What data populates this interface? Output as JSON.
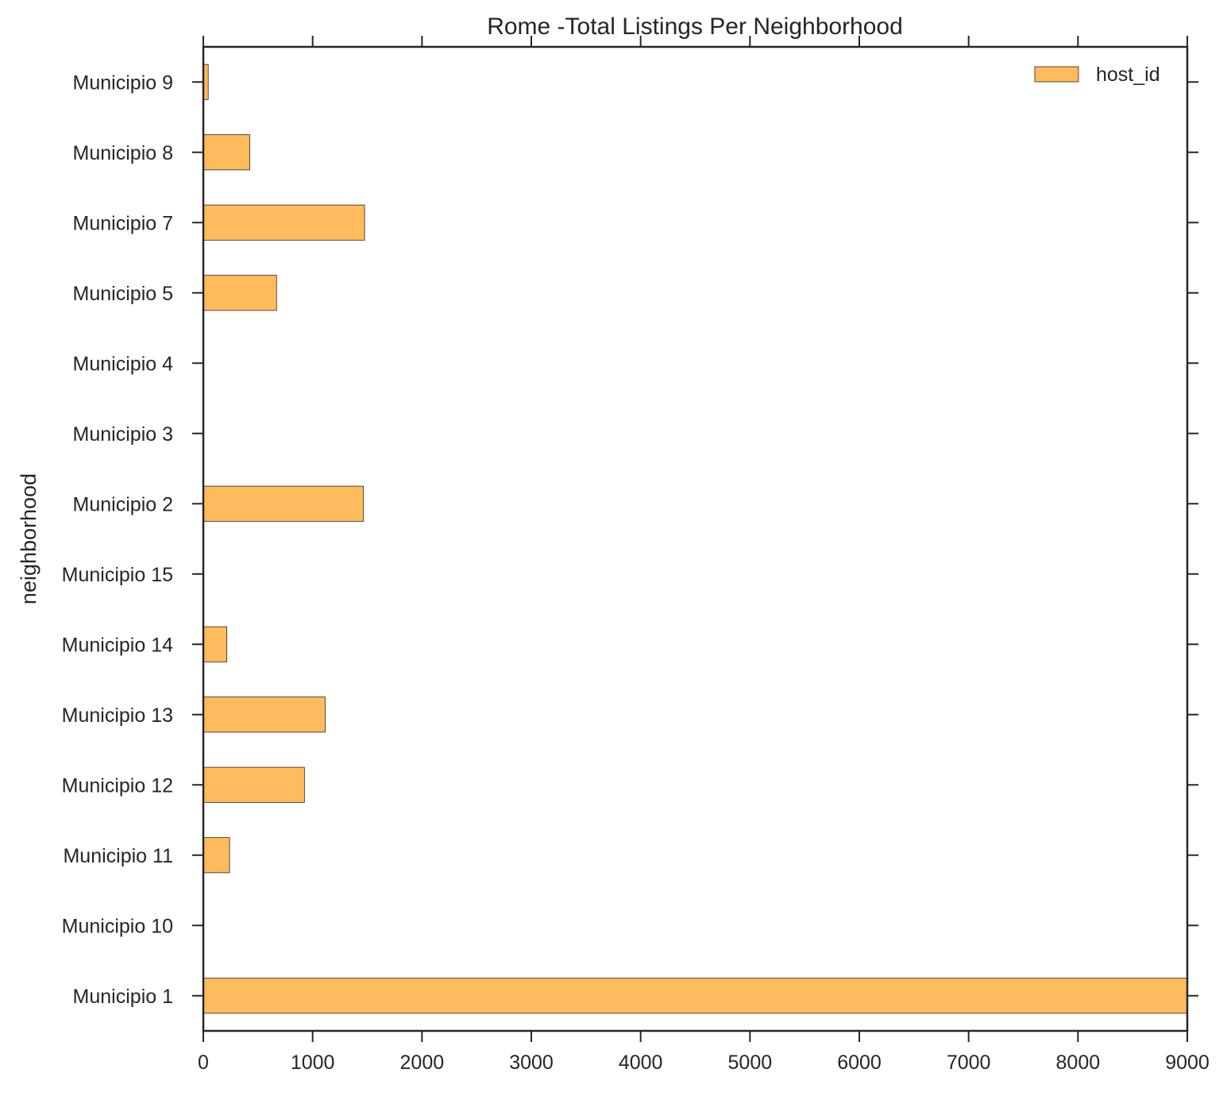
{
  "chart_data": {
    "type": "bar",
    "orientation": "horizontal",
    "title": "Rome -Total Listings Per Neighborhood",
    "xlabel": "",
    "ylabel": "neighborhood",
    "xlim": [
      0,
      9000
    ],
    "xticks": [
      0,
      1000,
      2000,
      3000,
      4000,
      5000,
      6000,
      7000,
      8000,
      9000
    ],
    "grid": false,
    "legend_position": "top-right",
    "categories": [
      "Municipio 1",
      "Municipio 10",
      "Municipio 11",
      "Municipio 12",
      "Municipio 13",
      "Municipio 14",
      "Municipio 15",
      "Municipio 2",
      "Municipio 3",
      "Municipio 4",
      "Municipio 5",
      "Municipio 7",
      "Municipio 8",
      "Municipio 9"
    ],
    "series": [
      {
        "name": "host_id",
        "color": "#ffbb5c",
        "values": [
          9000,
          0,
          240,
          925,
          1115,
          215,
          0,
          1465,
          0,
          0,
          670,
          1475,
          425,
          45
        ]
      }
    ]
  }
}
